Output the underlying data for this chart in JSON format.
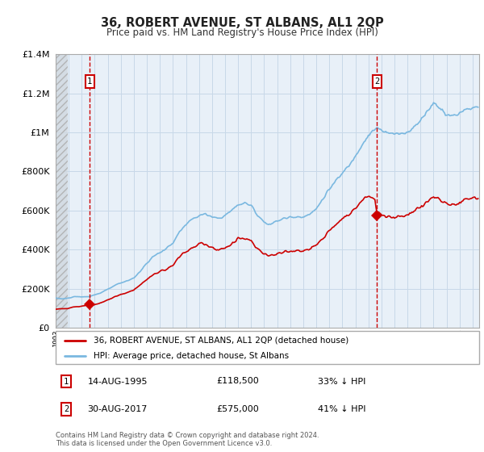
{
  "title": "36, ROBERT AVENUE, ST ALBANS, AL1 2QP",
  "subtitle": "Price paid vs. HM Land Registry's House Price Index (HPI)",
  "legend_line1": "36, ROBERT AVENUE, ST ALBANS, AL1 2QP (detached house)",
  "legend_line2": "HPI: Average price, detached house, St Albans",
  "footnote": "Contains HM Land Registry data © Crown copyright and database right 2024.\nThis data is licensed under the Open Government Licence v3.0.",
  "sale1_date": 1995.617,
  "sale1_price": 118500,
  "sale2_date": 2017.659,
  "sale2_price": 575000,
  "xmin": 1993.0,
  "xmax": 2025.5,
  "ymin": 0,
  "ymax": 1400000,
  "hpi_color": "#7ab8e0",
  "price_color": "#cc0000",
  "grid_color": "#c8d8e8",
  "plot_bg": "#e8f0f8",
  "hatch_end": 1993.92
}
